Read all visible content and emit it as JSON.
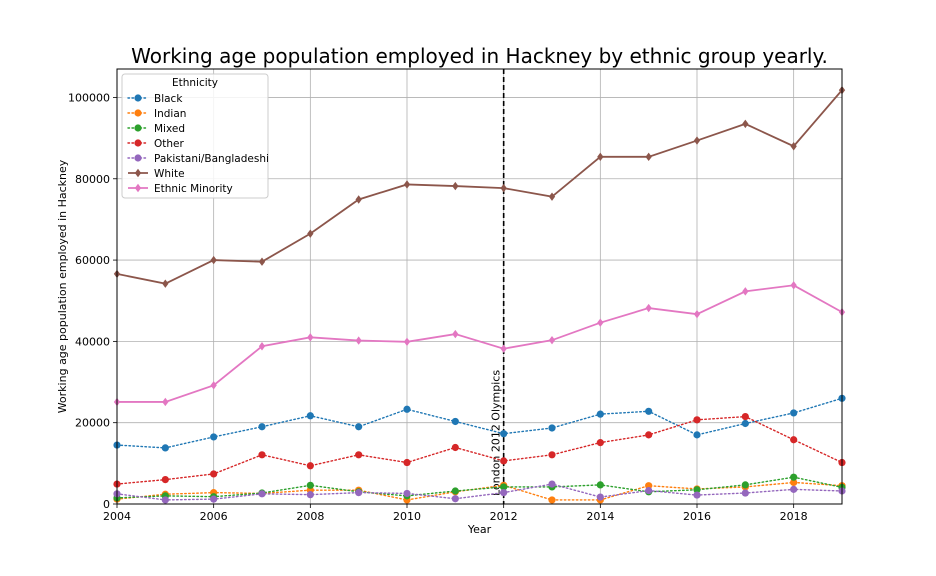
{
  "chart_data": {
    "type": "line",
    "title": "Working age population employed in Hackney by ethnic group yearly.",
    "xlabel": "Year",
    "ylabel": "Working age population employed in Hackney",
    "xlim": [
      2004,
      2019
    ],
    "ylim": [
      0,
      107000
    ],
    "x": [
      2004,
      2005,
      2006,
      2007,
      2008,
      2009,
      2010,
      2011,
      2012,
      2013,
      2014,
      2015,
      2016,
      2017,
      2018,
      2019
    ],
    "xticks": [
      2004,
      2006,
      2008,
      2010,
      2012,
      2014,
      2016,
      2018
    ],
    "yticks": [
      0,
      20000,
      40000,
      60000,
      80000,
      100000
    ],
    "grid": true,
    "legend": {
      "title": "Ethnicity",
      "placement": "top-left"
    },
    "series": [
      {
        "name": "Black",
        "color": "#1f77b4",
        "style": "dotted",
        "marker": "circle",
        "values": [
          14500,
          13800,
          16500,
          19000,
          21700,
          19000,
          23300,
          20300,
          17300,
          18700,
          22100,
          22800,
          17000,
          19800,
          22400,
          26000
        ]
      },
      {
        "name": "Indian",
        "color": "#ff7f0e",
        "style": "dotted",
        "marker": "circle",
        "values": [
          1200,
          2400,
          2800,
          2600,
          3400,
          3400,
          1000,
          3000,
          4600,
          1000,
          1000,
          4500,
          3700,
          4200,
          5300,
          4500
        ]
      },
      {
        "name": "Mixed",
        "color": "#2ca02c",
        "style": "dotted",
        "marker": "circle",
        "values": [
          1500,
          2000,
          1800,
          2700,
          4600,
          3000,
          2000,
          3200,
          4200,
          4200,
          4700,
          3000,
          3500,
          4700,
          6600,
          4100
        ]
      },
      {
        "name": "Other",
        "color": "#d62728",
        "style": "dotted",
        "marker": "circle",
        "values": [
          4900,
          6000,
          7400,
          12100,
          9400,
          12100,
          10200,
          13900,
          10600,
          12100,
          15100,
          17000,
          20700,
          21500,
          15800,
          10200
        ]
      },
      {
        "name": "Pakistani/Bangladeshi",
        "color": "#9467bd",
        "style": "dotted",
        "marker": "circle",
        "values": [
          2500,
          1000,
          1200,
          2500,
          2300,
          2800,
          2600,
          1300,
          2800,
          4900,
          1700,
          3300,
          2200,
          2700,
          3600,
          3200
        ]
      },
      {
        "name": "White",
        "color": "#8c564b",
        "style": "solid",
        "marker": "diamond",
        "values": [
          56600,
          54200,
          60000,
          59600,
          66500,
          74900,
          78600,
          78200,
          77700,
          75600,
          85400,
          85400,
          89400,
          93500,
          88000,
          101800
        ]
      },
      {
        "name": "Ethnic Minority",
        "color": "#e377c2",
        "style": "solid",
        "marker": "diamond",
        "values": [
          25100,
          25100,
          29200,
          38800,
          41000,
          40200,
          39900,
          41800,
          38200,
          40300,
          44600,
          48200,
          46700,
          52300,
          53800,
          47200
        ]
      }
    ],
    "annotations": [
      {
        "text": "London 2012 Olympics",
        "x": 2012,
        "type": "vertical-dashed-line"
      }
    ]
  }
}
